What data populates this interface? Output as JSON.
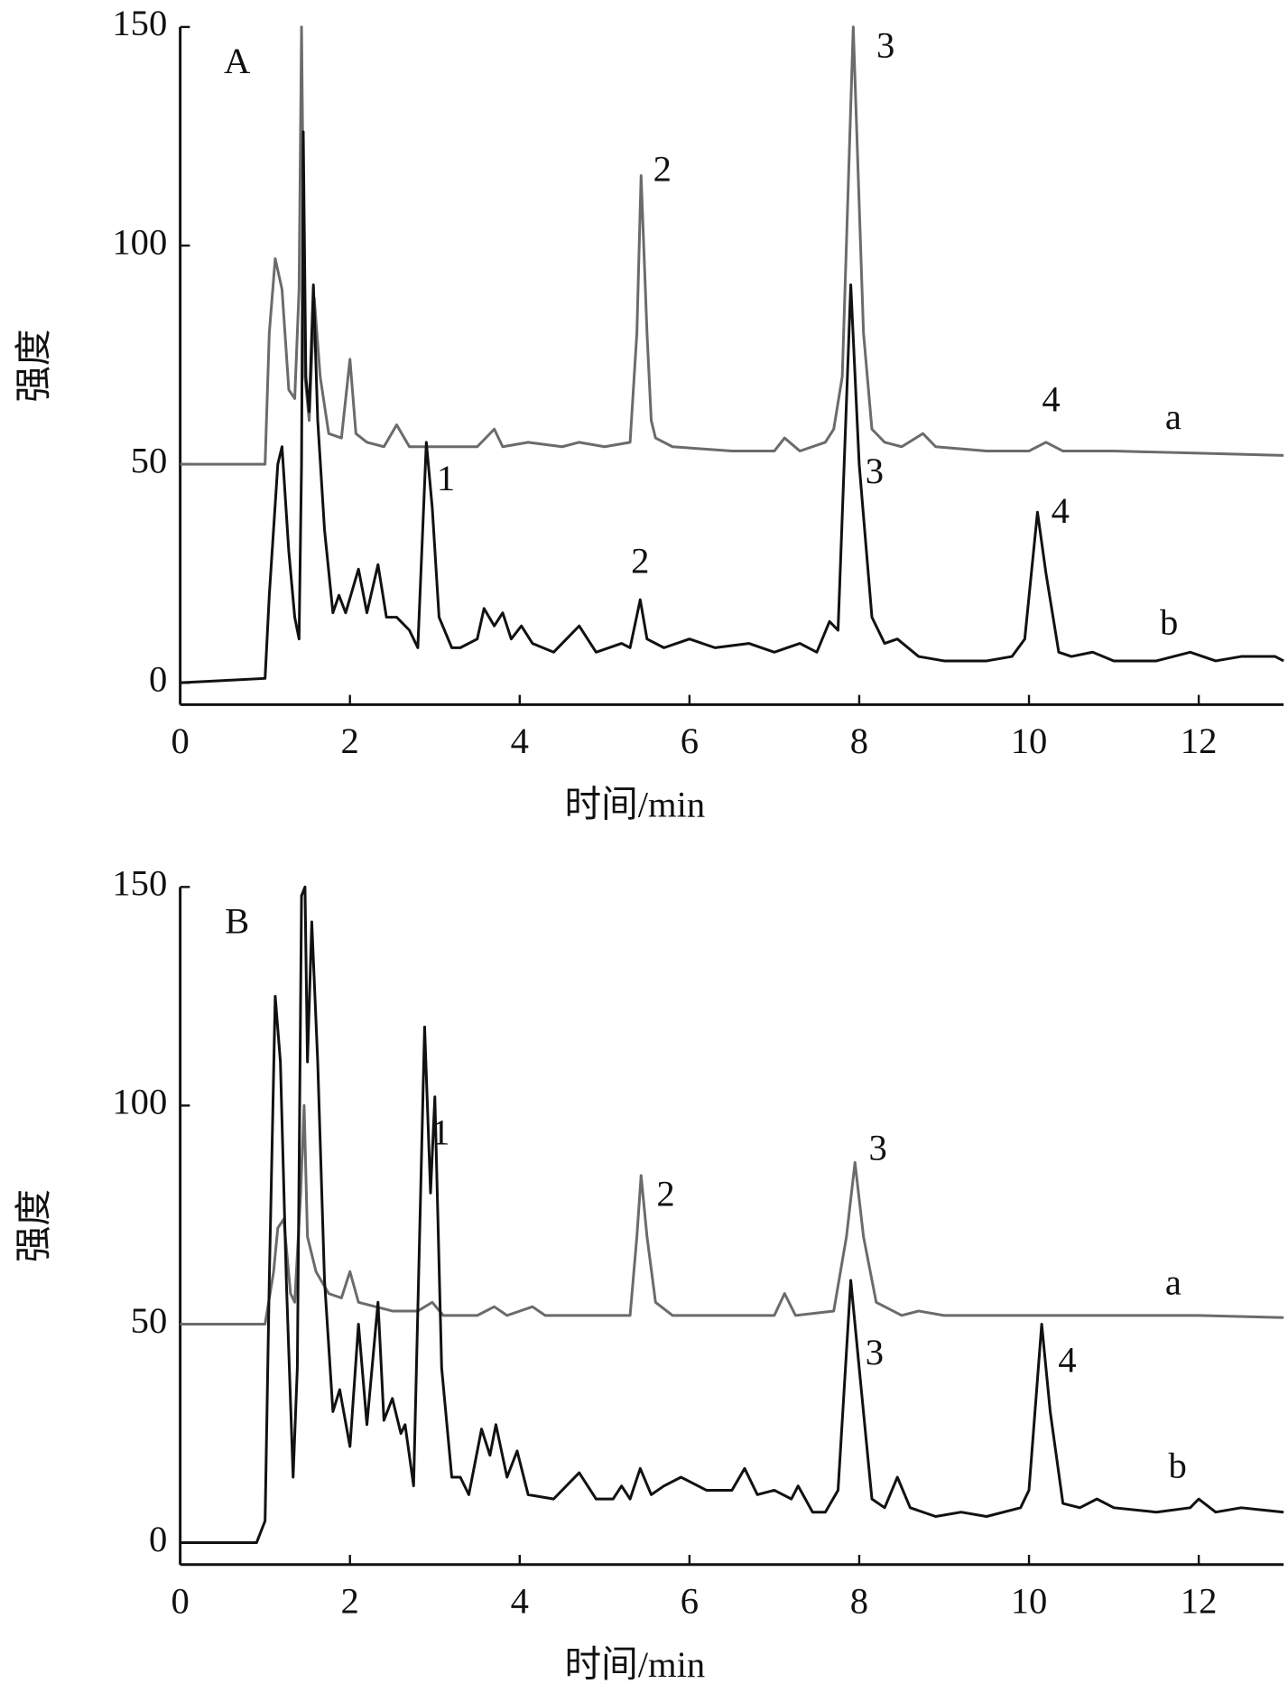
{
  "chart_data": [
    {
      "type": "line",
      "panel_label": "A",
      "xlabel": "时间/min",
      "ylabel": "强度",
      "xlim": [
        0,
        13
      ],
      "ylim": [
        -5,
        150
      ],
      "xticks": [
        0,
        2,
        4,
        6,
        8,
        10,
        12
      ],
      "yticks": [
        0,
        50,
        100,
        150
      ],
      "series": [
        {
          "color": "#6b6b6b",
          "x": [
            0,
            1.0,
            1.05,
            1.12,
            1.2,
            1.28,
            1.35,
            1.4,
            1.43,
            1.47,
            1.52,
            1.58,
            1.65,
            1.75,
            1.9,
            2.0,
            2.07,
            2.2,
            2.4,
            2.55,
            2.7,
            3.0,
            3.5,
            3.7,
            3.8,
            4.1,
            4.5,
            4.7,
            5.0,
            5.3,
            5.38,
            5.43,
            5.5,
            5.55,
            5.6,
            5.8,
            6.5,
            7.0,
            7.12,
            7.3,
            7.6,
            7.7,
            7.8,
            7.93,
            8.05,
            8.15,
            8.3,
            8.5,
            8.75,
            8.9,
            9.5,
            10.0,
            10.2,
            10.4,
            11,
            12,
            13
          ],
          "values": [
            50,
            50,
            80,
            97,
            90,
            67,
            65,
            90,
            150,
            70,
            60,
            88,
            70,
            57,
            56,
            74,
            57,
            55,
            54,
            59,
            54,
            54,
            54,
            58,
            54,
            55,
            54,
            55,
            54,
            55,
            80,
            116,
            80,
            60,
            56,
            54,
            53,
            53,
            56,
            53,
            55,
            58,
            70,
            150,
            80,
            58,
            55,
            54,
            57,
            54,
            53,
            53,
            55,
            53,
            53,
            52.5,
            52
          ]
        },
        {
          "color": "#111111",
          "x": [
            0,
            0.5,
            1.0,
            1.05,
            1.15,
            1.2,
            1.28,
            1.35,
            1.4,
            1.43,
            1.45,
            1.48,
            1.52,
            1.57,
            1.62,
            1.7,
            1.8,
            1.87,
            1.95,
            2.1,
            2.2,
            2.33,
            2.43,
            2.55,
            2.7,
            2.8,
            2.9,
            2.97,
            3.05,
            3.2,
            3.3,
            3.5,
            3.58,
            3.7,
            3.8,
            3.9,
            4.02,
            4.15,
            4.4,
            4.7,
            4.9,
            5.2,
            5.3,
            5.42,
            5.5,
            5.7,
            6.0,
            6.3,
            6.7,
            7.0,
            7.3,
            7.5,
            7.65,
            7.75,
            7.9,
            8.0,
            8.15,
            8.3,
            8.45,
            8.7,
            9.0,
            9.5,
            9.8,
            9.95,
            10.1,
            10.2,
            10.35,
            10.5,
            10.75,
            11,
            11.5,
            11.9,
            12.2,
            12.5,
            12.9,
            13
          ],
          "values": [
            0,
            0.5,
            1,
            20,
            50,
            54,
            30,
            15,
            10,
            50,
            126,
            70,
            62,
            91,
            60,
            35,
            16,
            20,
            16,
            26,
            16,
            27,
            15,
            15,
            12,
            8,
            55,
            40,
            15,
            8,
            8,
            10,
            17,
            13,
            16,
            10,
            13,
            9,
            7,
            13,
            7,
            9,
            8,
            19,
            10,
            8,
            10,
            8,
            9,
            7,
            9,
            7,
            14,
            12,
            91,
            50,
            15,
            9,
            10,
            6,
            5,
            5,
            6,
            10,
            39,
            25,
            7,
            6,
            7,
            5,
            5,
            7,
            5,
            6,
            6,
            5
          ]
        }
      ],
      "annotations": [
        {
          "text": "3",
          "x": 8.31,
          "y": 145
        },
        {
          "text": "2",
          "x": 5.68,
          "y": 116.7
        },
        {
          "text": "4",
          "x": 10.26,
          "y": 64
        },
        {
          "text": "a",
          "x": 11.7,
          "y": 60
        },
        {
          "text": "1",
          "x": 3.13,
          "y": 46
        },
        {
          "text": "3",
          "x": 8.18,
          "y": 47.6
        },
        {
          "text": "2",
          "x": 5.42,
          "y": 27
        },
        {
          "text": "4",
          "x": 10.37,
          "y": 38.5
        },
        {
          "text": "b",
          "x": 11.65,
          "y": 13
        }
      ]
    },
    {
      "type": "line",
      "panel_label": "B",
      "xlabel": "时间/min",
      "ylabel": "强度",
      "xlim": [
        0,
        13
      ],
      "ylim": [
        -5,
        150
      ],
      "xticks": [
        0,
        2,
        4,
        6,
        8,
        10,
        12
      ],
      "yticks": [
        0,
        50,
        100,
        150
      ],
      "series": [
        {
          "color": "#6b6b6b",
          "x": [
            0,
            1.0,
            1.1,
            1.15,
            1.22,
            1.3,
            1.35,
            1.42,
            1.46,
            1.5,
            1.6,
            1.75,
            1.9,
            2.0,
            2.1,
            2.5,
            2.8,
            2.97,
            3.1,
            3.5,
            3.7,
            3.85,
            4.15,
            4.3,
            5.3,
            5.38,
            5.43,
            5.5,
            5.6,
            5.8,
            6.5,
            7.0,
            7.12,
            7.25,
            7.7,
            7.85,
            7.95,
            8.05,
            8.2,
            8.5,
            8.7,
            9,
            10,
            11,
            12,
            13
          ],
          "values": [
            50,
            50,
            62,
            72,
            74,
            57,
            55,
            80,
            100,
            70,
            62,
            57,
            56,
            62,
            55,
            53,
            53,
            55,
            52,
            52,
            54,
            52,
            54,
            52,
            52,
            70,
            84,
            70,
            55,
            52,
            52,
            52,
            57,
            52,
            53,
            70,
            87,
            70,
            55,
            52,
            53,
            52,
            52,
            52,
            52,
            51.5
          ]
        },
        {
          "color": "#111111",
          "x": [
            0,
            0.9,
            1.0,
            1.05,
            1.12,
            1.18,
            1.25,
            1.33,
            1.38,
            1.43,
            1.47,
            1.5,
            1.55,
            1.62,
            1.7,
            1.8,
            1.88,
            2.0,
            2.1,
            2.2,
            2.33,
            2.4,
            2.5,
            2.6,
            2.65,
            2.75,
            2.88,
            2.95,
            3.0,
            3.08,
            3.2,
            3.3,
            3.4,
            3.55,
            3.65,
            3.72,
            3.85,
            3.97,
            4.1,
            4.4,
            4.7,
            4.9,
            5.1,
            5.2,
            5.3,
            5.42,
            5.55,
            5.7,
            5.9,
            6.2,
            6.5,
            6.65,
            6.8,
            7.0,
            7.2,
            7.28,
            7.45,
            7.6,
            7.75,
            7.9,
            8.0,
            8.15,
            8.3,
            8.45,
            8.6,
            8.9,
            9.2,
            9.5,
            9.9,
            10.0,
            10.15,
            10.25,
            10.4,
            10.6,
            10.8,
            11,
            11.5,
            11.9,
            12.0,
            12.2,
            12.5,
            13
          ],
          "values": [
            0,
            0,
            5,
            60,
            125,
            110,
            60,
            15,
            40,
            148,
            150,
            110,
            142,
            110,
            60,
            30,
            35,
            22,
            50,
            27,
            55,
            28,
            33,
            25,
            27,
            13,
            118,
            80,
            102,
            40,
            15,
            15,
            11,
            26,
            20,
            27,
            15,
            21,
            11,
            10,
            16,
            10,
            10,
            13,
            10,
            17,
            11,
            13,
            15,
            12,
            12,
            17,
            11,
            12,
            10,
            13,
            7,
            7,
            12,
            60,
            40,
            10,
            8,
            15,
            8,
            6,
            7,
            6,
            8,
            12,
            50,
            30,
            9,
            8,
            10,
            8,
            7,
            8,
            10,
            7,
            8,
            7
          ]
        }
      ],
      "annotations": [
        {
          "text": "1",
          "x": 3.07,
          "y": 93
        },
        {
          "text": "2",
          "x": 5.72,
          "y": 79
        },
        {
          "text": "3",
          "x": 8.22,
          "y": 89.5
        },
        {
          "text": "a",
          "x": 11.7,
          "y": 58.7
        },
        {
          "text": "3",
          "x": 8.18,
          "y": 42.7
        },
        {
          "text": "4",
          "x": 10.45,
          "y": 41
        },
        {
          "text": "b",
          "x": 11.75,
          "y": 16.8
        }
      ]
    }
  ]
}
